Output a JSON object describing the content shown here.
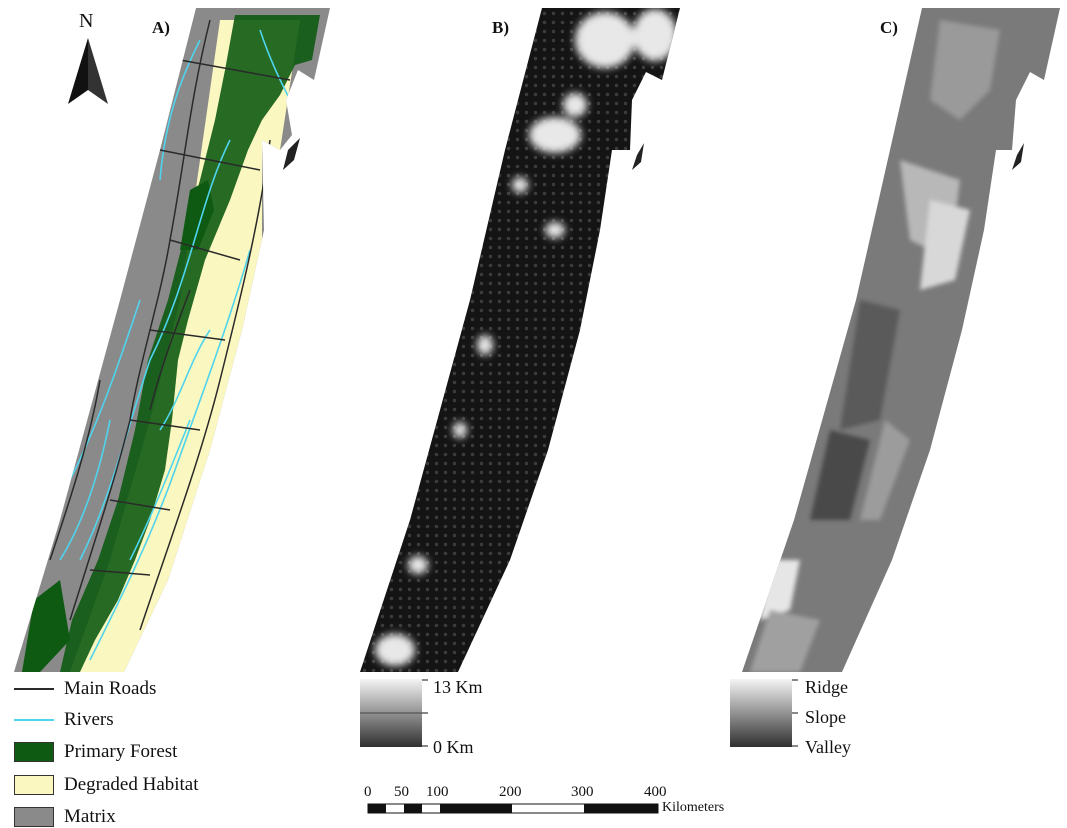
{
  "north": {
    "label": "N",
    "icon": "north-arrow-icon"
  },
  "panels": [
    {
      "label": "A)"
    },
    {
      "label": "B)"
    },
    {
      "label": "C)"
    }
  ],
  "legend": {
    "items": [
      {
        "label": "Main Roads",
        "symbol": "line",
        "color": "#2a2a2a"
      },
      {
        "label": "Rivers",
        "symbol": "line",
        "color": "#4fd4ee"
      },
      {
        "label": "Primary Forest",
        "symbol": "box",
        "color": "#0e5a12"
      },
      {
        "label": "Degraded Habitat",
        "symbol": "box",
        "color": "#fbf7c0"
      },
      {
        "label": "Matrix",
        "symbol": "box",
        "color": "#8a8a8a"
      }
    ]
  },
  "distance_ramp": {
    "top_label": "13 Km",
    "bottom_label": "0 Km"
  },
  "terrain_ramp": {
    "top_label": "Ridge",
    "middle_label": "Slope",
    "bottom_label": "Valley"
  },
  "scale_bar": {
    "ticks": [
      "0",
      "50",
      "100",
      "200",
      "300",
      "400"
    ],
    "unit": "Kilometers"
  },
  "colors": {
    "matrix": "#8a8a8a",
    "degraded": "#fbf7c0",
    "forest": "#0e5a12",
    "rivers": "#4fd4ee",
    "roads": "#2a2a2a",
    "distance_dark": "#141414",
    "terrain_mid": "#7a7a7a"
  }
}
